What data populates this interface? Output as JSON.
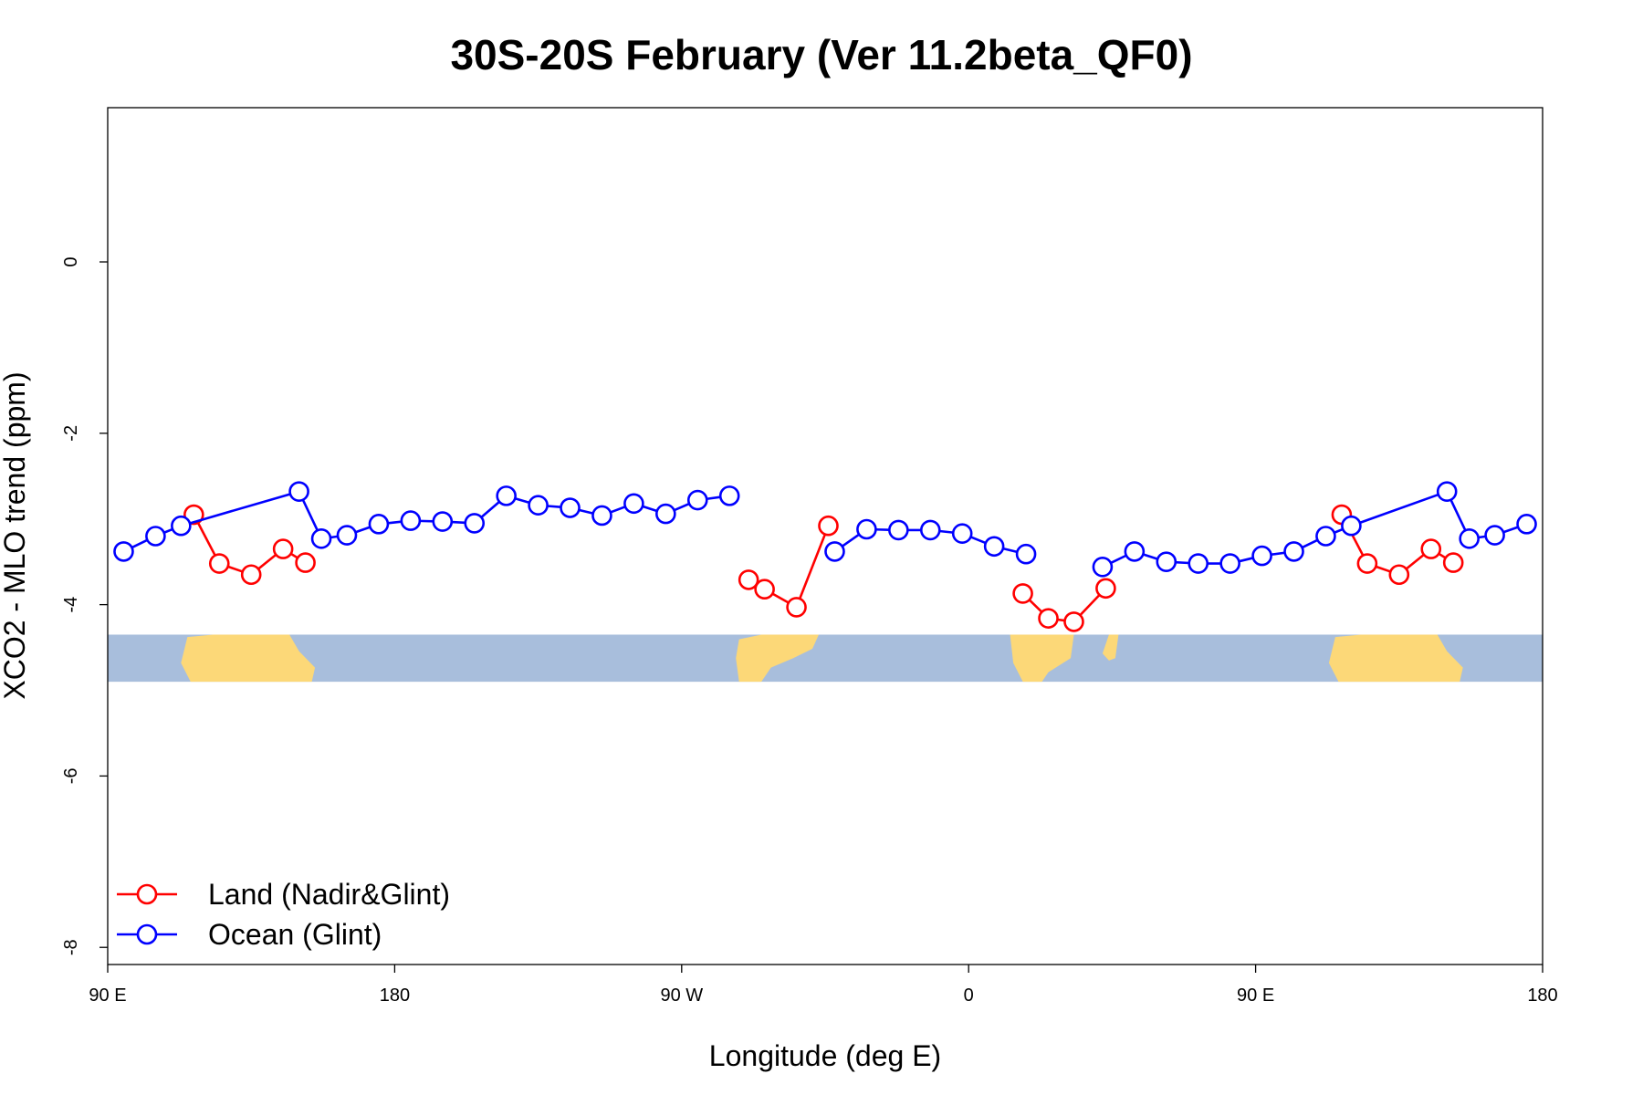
{
  "chart_data": {
    "type": "line",
    "title": "30S-20S February (Ver 11.2beta_QF0)",
    "xlabel": "Longitude (deg E)",
    "ylabel": "XCO2 - MLO trend (ppm)",
    "xlim": [
      90,
      540
    ],
    "ylim": [
      -8.2,
      1.8
    ],
    "x_ticks": [
      {
        "value": 90,
        "label": "90 E"
      },
      {
        "value": 180,
        "label": "180"
      },
      {
        "value": 270,
        "label": "90 W"
      },
      {
        "value": 360,
        "label": "0"
      },
      {
        "value": 450,
        "label": "90 E"
      },
      {
        "value": 540,
        "label": "180"
      }
    ],
    "y_ticks": [
      {
        "value": 0,
        "label": "0"
      },
      {
        "value": -2,
        "label": "-2"
      },
      {
        "value": -4,
        "label": "-4"
      },
      {
        "value": -6,
        "label": "-6"
      },
      {
        "value": -8,
        "label": "-8"
      }
    ],
    "grid": false,
    "legend_position": "bottom-left",
    "map_strip": {
      "y_range": [
        -4.35,
        -4.9
      ],
      "ocean_color": "#a8bedc",
      "land_color": "#fcd878"
    },
    "series": [
      {
        "name": "Land (Nadir&Glint)",
        "color": "#ff0000",
        "segments": [
          [
            [
              117,
              -2.95
            ],
            [
              125,
              -3.52
            ],
            [
              135,
              -3.65
            ],
            [
              145,
              -3.35
            ],
            [
              152,
              -3.51
            ]
          ],
          [
            [
              291,
              -3.71
            ],
            [
              296,
              -3.82
            ],
            [
              306,
              -4.03
            ],
            [
              316,
              -3.08
            ]
          ],
          [
            [
              377,
              -3.87
            ],
            [
              385,
              -4.16
            ],
            [
              393,
              -4.2
            ],
            [
              403,
              -3.81
            ]
          ],
          [
            [
              477,
              -2.95
            ],
            [
              485,
              -3.52
            ],
            [
              495,
              -3.65
            ],
            [
              505,
              -3.35
            ],
            [
              512,
              -3.51
            ]
          ]
        ]
      },
      {
        "name": "Ocean (Glint)",
        "color": "#0000ff",
        "segments": [
          [
            [
              95,
              -3.38
            ],
            [
              105,
              -3.2
            ],
            [
              113,
              -3.08
            ],
            [
              150,
              -2.68
            ],
            [
              157,
              -3.23
            ],
            [
              165,
              -3.19
            ],
            [
              175,
              -3.06
            ],
            [
              185,
              -3.02
            ],
            [
              195,
              -3.03
            ],
            [
              205,
              -3.05
            ],
            [
              215,
              -2.73
            ],
            [
              225,
              -2.84
            ],
            [
              235,
              -2.87
            ],
            [
              245,
              -2.96
            ],
            [
              255,
              -2.82
            ],
            [
              265,
              -2.94
            ],
            [
              275,
              -2.78
            ],
            [
              285,
              -2.73
            ]
          ],
          [
            [
              318,
              -3.38
            ],
            [
              328,
              -3.12
            ],
            [
              338,
              -3.13
            ],
            [
              348,
              -3.13
            ],
            [
              358,
              -3.17
            ],
            [
              368,
              -3.32
            ],
            [
              378,
              -3.41
            ]
          ],
          [
            [
              402,
              -3.56
            ],
            [
              412,
              -3.38
            ],
            [
              422,
              -3.5
            ],
            [
              432,
              -3.52
            ],
            [
              442,
              -3.52
            ],
            [
              452,
              -3.43
            ],
            [
              462,
              -3.38
            ],
            [
              472,
              -3.2
            ],
            [
              480,
              -3.08
            ],
            [
              510,
              -2.68
            ],
            [
              517,
              -3.23
            ],
            [
              525,
              -3.19
            ],
            [
              535,
              -3.06
            ]
          ]
        ]
      }
    ]
  }
}
